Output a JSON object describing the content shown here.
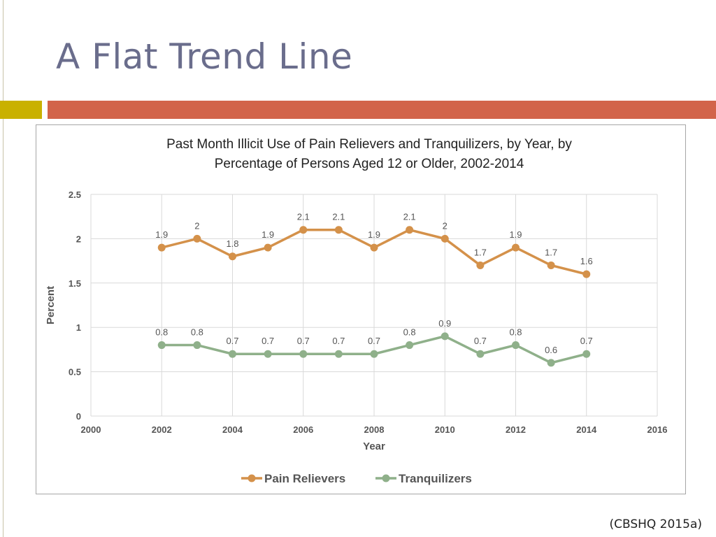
{
  "slide": {
    "title": "A Flat Trend Line",
    "source": "(CBSHQ 2015a)"
  },
  "colors": {
    "title": "#6a6d8c",
    "gold_bar": "#c9b100",
    "red_bar": "#d2644a",
    "pain_relievers": "#d4914a",
    "tranquilizers": "#8fb08a"
  },
  "chart_data": {
    "type": "line",
    "title_lines": [
      "Past Month Illicit Use of Pain Relievers and Tranquilizers, by Year, by",
      "Percentage of Persons Aged 12 or Older, 2002-2014"
    ],
    "xlabel": "Year",
    "ylabel": "Percent",
    "xlim": [
      2000,
      2016
    ],
    "ylim": [
      0,
      2.5
    ],
    "xticks": [
      2000,
      2002,
      2004,
      2006,
      2008,
      2010,
      2012,
      2014,
      2016
    ],
    "yticks": [
      0,
      0.5,
      1,
      1.5,
      2,
      2.5
    ],
    "grid": true,
    "legend_position": "bottom",
    "x": [
      2002,
      2003,
      2004,
      2005,
      2006,
      2007,
      2008,
      2009,
      2010,
      2011,
      2012,
      2013,
      2014
    ],
    "series": [
      {
        "name": "Pain Relievers",
        "color": "#d4914a",
        "values": [
          1.9,
          2,
          1.8,
          1.9,
          2.1,
          2.1,
          1.9,
          2.1,
          2,
          1.7,
          1.9,
          1.7,
          1.6
        ]
      },
      {
        "name": "Tranquilizers",
        "color": "#8fb08a",
        "values": [
          0.8,
          0.8,
          0.7,
          0.7,
          0.7,
          0.7,
          0.7,
          0.8,
          0.9,
          0.7,
          0.8,
          0.6,
          0.7
        ]
      }
    ]
  }
}
